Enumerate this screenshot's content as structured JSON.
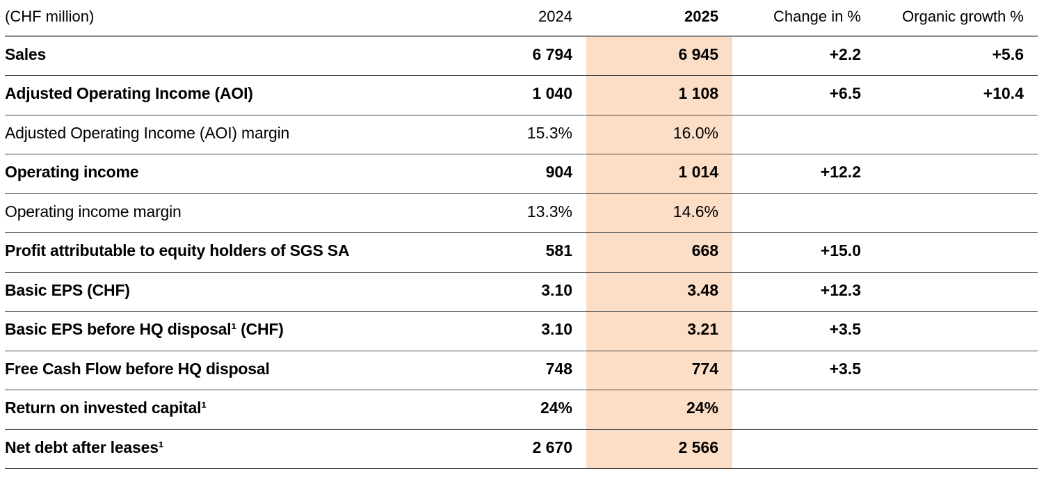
{
  "table": {
    "unit_label": "(CHF million)",
    "columns": {
      "y2024": "2024",
      "y2025": "2025",
      "change": "Change in %",
      "organic": "Organic growth %"
    },
    "highlight_color": "#fcdec7",
    "rows": [
      {
        "label": "Sales",
        "y2024": "6 794",
        "y2025": "6 945",
        "change": "+2.2",
        "organic": "+5.6",
        "bold": true
      },
      {
        "label": "Adjusted Operating Income (AOI)",
        "y2024": "1 040",
        "y2025": "1 108",
        "change": "+6.5",
        "organic": "+10.4",
        "bold": true
      },
      {
        "label": "Adjusted Operating Income (AOI) margin",
        "y2024": "15.3%",
        "y2025": "16.0%",
        "change": "",
        "organic": "",
        "bold": false
      },
      {
        "label": "Operating income",
        "y2024": "904",
        "y2025": "1 014",
        "change": "+12.2",
        "organic": "",
        "bold": true
      },
      {
        "label": "Operating income margin",
        "y2024": "13.3%",
        "y2025": "14.6%",
        "change": "",
        "organic": "",
        "bold": false
      },
      {
        "label": "Profit attributable to equity holders of SGS SA",
        "y2024": "581",
        "y2025": "668",
        "change": "+15.0",
        "organic": "",
        "bold": true
      },
      {
        "label": "Basic EPS (CHF)",
        "y2024": "3.10",
        "y2025": "3.48",
        "change": "+12.3",
        "organic": "",
        "bold": true
      },
      {
        "label": "Basic EPS before HQ disposal¹ (CHF)",
        "y2024": "3.10",
        "y2025": "3.21",
        "change": "+3.5",
        "organic": "",
        "bold": true
      },
      {
        "label": "Free Cash Flow before HQ disposal",
        "y2024": "748",
        "y2025": "774",
        "change": "+3.5",
        "organic": "",
        "bold": true
      },
      {
        "label": "Return on invested capital¹",
        "y2024": "24%",
        "y2025": "24%",
        "change": "",
        "organic": "",
        "bold": true
      },
      {
        "label": "Net debt after leases¹",
        "y2024": "2 670",
        "y2025": "2 566",
        "change": "",
        "organic": "",
        "bold": true
      }
    ]
  }
}
